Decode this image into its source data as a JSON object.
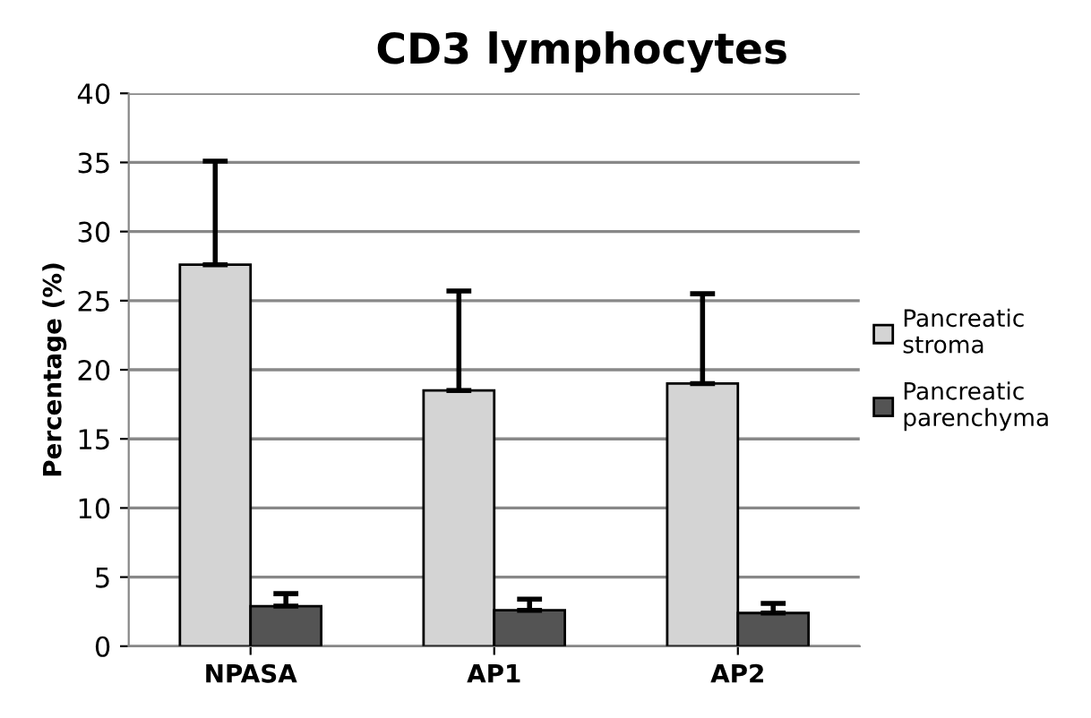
{
  "chart_data": {
    "type": "bar",
    "title": "CD3 lymphocytes",
    "ylabel": "Percentage (%)",
    "categories": [
      "NPASA",
      "AP1",
      "AP2"
    ],
    "series": [
      {
        "name": "Pancreatic stroma",
        "color": "#d4d4d4",
        "values": [
          27.6,
          18.5,
          19.0
        ],
        "errors": [
          [
            27.6,
            35.1
          ],
          [
            18.5,
            25.7
          ],
          [
            19.0,
            25.5
          ]
        ]
      },
      {
        "name": "Pancreatic parenchyma",
        "color": "#545454",
        "values": [
          2.9,
          2.6,
          2.4
        ],
        "errors": [
          [
            2.9,
            3.8
          ],
          [
            2.6,
            3.4
          ],
          [
            2.4,
            3.1
          ]
        ]
      }
    ],
    "ylim": [
      0,
      40
    ],
    "yticks": [
      0,
      5,
      10,
      15,
      20,
      25,
      30,
      35,
      40
    ],
    "grid": "y",
    "legend": "right"
  }
}
